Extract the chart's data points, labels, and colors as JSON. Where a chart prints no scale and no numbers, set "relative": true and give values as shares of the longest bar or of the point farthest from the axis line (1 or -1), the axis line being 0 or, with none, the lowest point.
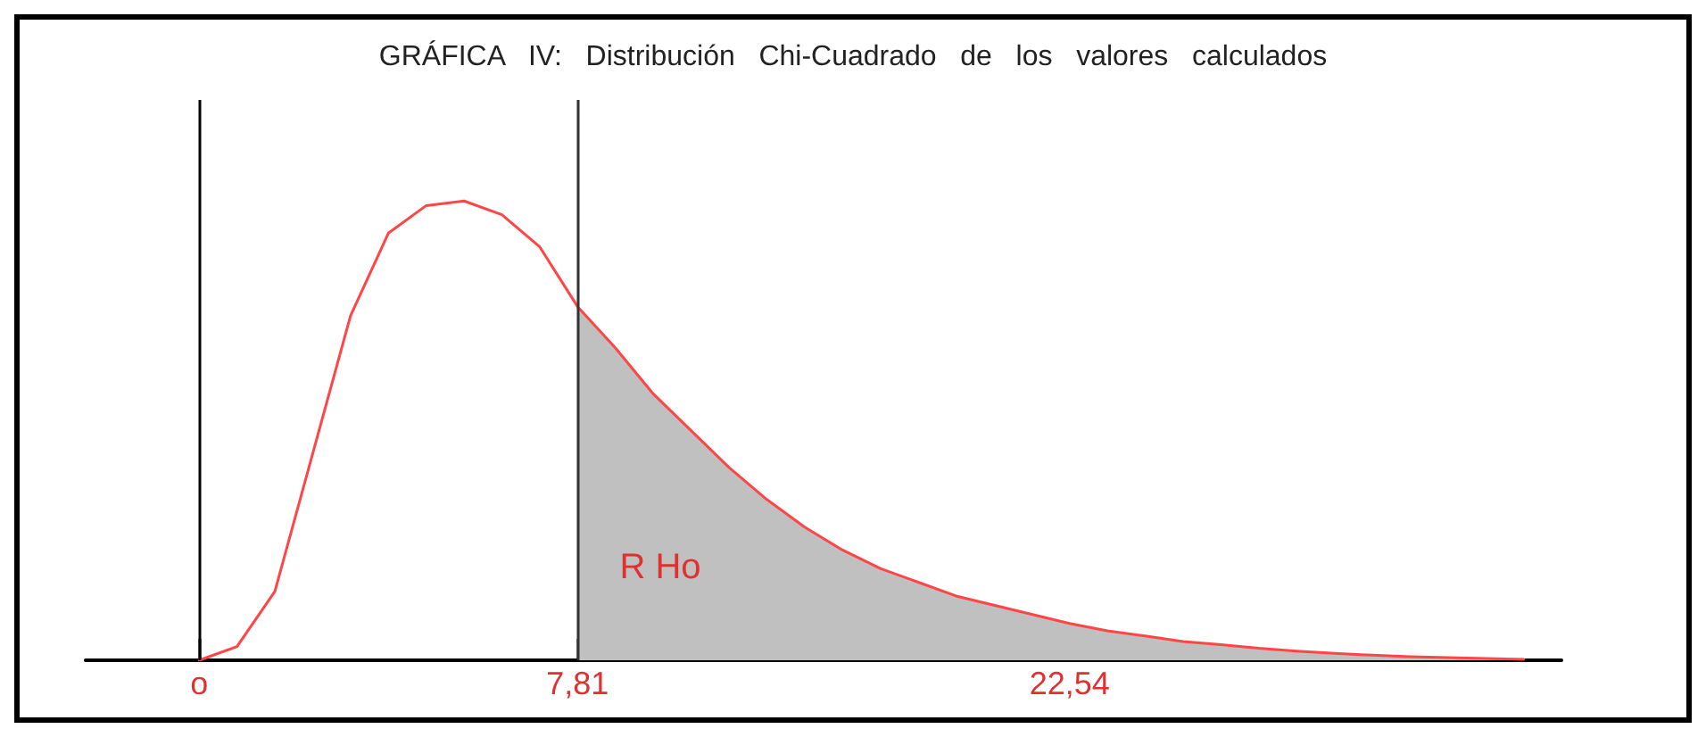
{
  "chart_data": {
    "type": "line",
    "title": "GRÁFICA   IV:   Distribución   Chi-Cuadrado   de   los   valores   calculados",
    "relative": true,
    "categories": [
      null,
      null,
      null,
      "o",
      null,
      null,
      null,
      null,
      null,
      null,
      null,
      null,
      null,
      "7,81",
      null,
      null,
      null,
      null,
      null,
      null,
      null,
      null,
      null,
      null,
      null,
      null,
      "22,54",
      null,
      null,
      null,
      null,
      null,
      null,
      null,
      null,
      null,
      null,
      null,
      null,
      null
    ],
    "series": [
      {
        "color": "#ff4545",
        "values": [
          null,
          null,
          null,
          0,
          0.03,
          0.15,
          0.45,
          0.75,
          0.93,
          0.99,
          1.0,
          0.97,
          0.9,
          0.77,
          0.68,
          0.58,
          0.5,
          0.42,
          0.35,
          0.29,
          0.24,
          0.2,
          0.17,
          0.14,
          0.12,
          0.1,
          0.08,
          0.064,
          0.053,
          0.041,
          0.034,
          0.026,
          0.02,
          0.015,
          0.011,
          0.008,
          0.006,
          0.004,
          0.002,
          null
        ]
      },
      {
        "type": "area",
        "color": "#c0c0c0",
        "values": [
          null,
          null,
          null,
          null,
          null,
          null,
          null,
          null,
          null,
          null,
          null,
          null,
          null,
          0.77,
          0.68,
          0.58,
          0.5,
          0.42,
          0.35,
          0.29,
          0.24,
          0.2,
          0.17,
          0.14,
          0.12,
          0.1,
          0.08,
          0.064,
          0.053,
          0.041,
          0.034,
          0.026,
          0.02,
          0.015,
          0.011,
          0.008,
          0.006,
          0.004,
          0.002,
          null
        ]
      }
    ],
    "ref_lines": [
      {
        "axis": "x",
        "value": "o",
        "color": "#000000"
      },
      {
        "axis": "x",
        "value": "7,81",
        "color": "#333333"
      }
    ],
    "annotations": [
      "R Ho"
    ],
    "grid": false,
    "marker": "none",
    "line_style": "solid"
  }
}
